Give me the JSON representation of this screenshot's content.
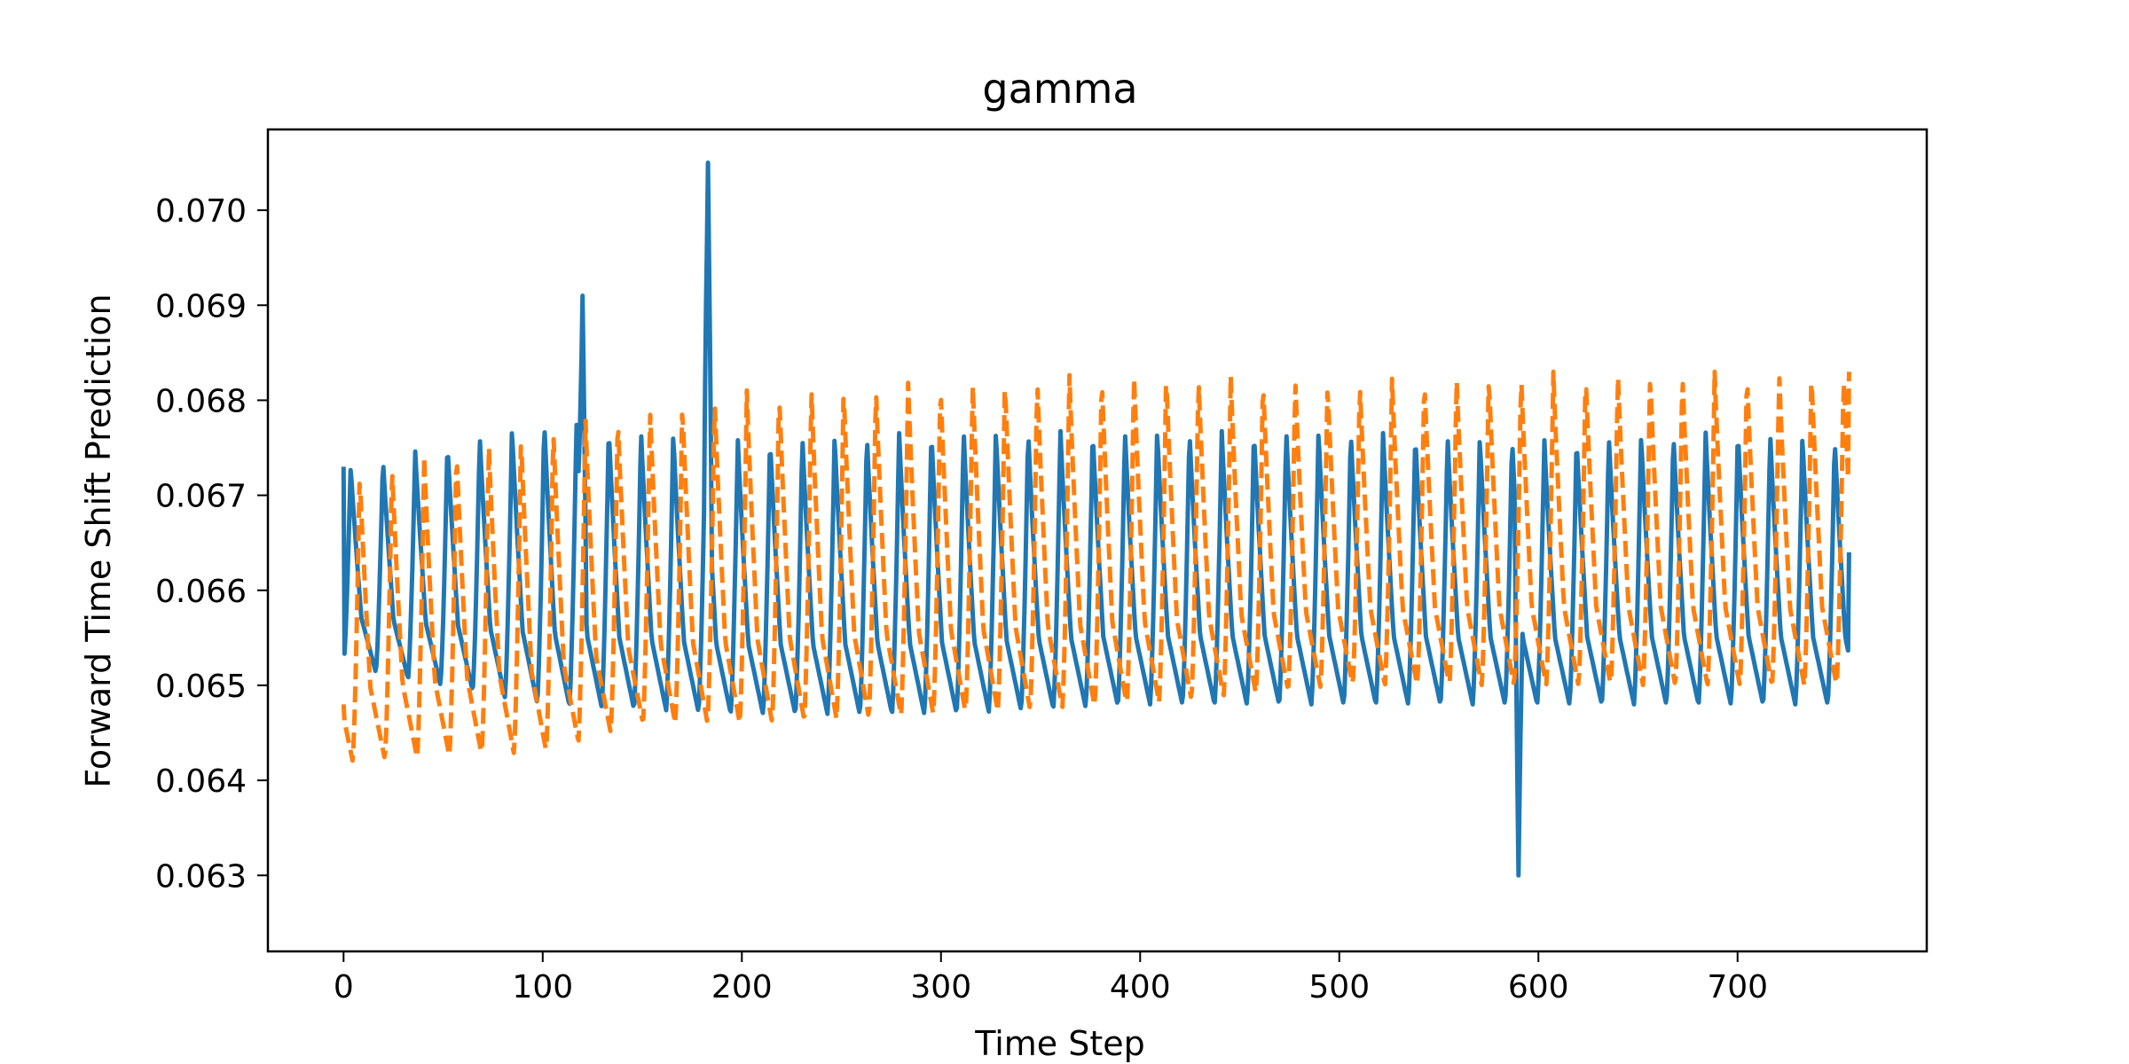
{
  "chart_data": {
    "type": "line",
    "title": "gamma",
    "xlabel": "Time Step",
    "ylabel": "Forward Time Shift Prediction",
    "xlim": [
      -38,
      795
    ],
    "ylim": [
      0.0626,
      0.0788
    ],
    "xticks": [
      0,
      100,
      200,
      300,
      400,
      500,
      600,
      700
    ],
    "yticks": [
      0.063,
      0.064,
      0.065,
      0.066,
      0.067,
      0.068,
      0.069,
      0.07
    ],
    "ytick_labels": [
      "0.063",
      "0.064",
      "0.065",
      "0.066",
      "0.067",
      "0.068",
      "0.069",
      "0.070"
    ],
    "grid": false,
    "legend": "none",
    "x_range": [
      0,
      756
    ],
    "period": 16.2,
    "series": [
      {
        "style": "solid",
        "color": "#1f77b4",
        "start_value": 0.0673,
        "end_value": 0.0664,
        "peak_trend": [
          [
            0,
            0.0673
          ],
          [
            100,
            0.0678
          ],
          [
            200,
            0.0676
          ],
          [
            300,
            0.0677
          ],
          [
            400,
            0.0677
          ],
          [
            500,
            0.0677
          ],
          [
            600,
            0.0676
          ],
          [
            700,
            0.0677
          ],
          [
            756,
            0.0676
          ]
        ],
        "trough_trend": [
          [
            0,
            0.0652
          ],
          [
            100,
            0.0648
          ],
          [
            200,
            0.0647
          ],
          [
            300,
            0.0647
          ],
          [
            400,
            0.0648
          ],
          [
            500,
            0.0648
          ],
          [
            600,
            0.0648
          ],
          [
            700,
            0.0648
          ],
          [
            756,
            0.0648
          ]
        ],
        "spikes": [
          [
            120,
            0.0691
          ],
          [
            183,
            0.0705
          ],
          [
            590,
            0.063
          ]
        ]
      },
      {
        "style": "dashed",
        "color": "#ff7f0e",
        "start_value": 0.0648,
        "end_value": 0.0683,
        "peak_trend": [
          [
            0,
            0.0672
          ],
          [
            100,
            0.0677
          ],
          [
            200,
            0.0681
          ],
          [
            300,
            0.0682
          ],
          [
            400,
            0.0683
          ],
          [
            500,
            0.0682
          ],
          [
            600,
            0.0683
          ],
          [
            700,
            0.0683
          ],
          [
            756,
            0.0683
          ]
        ],
        "trough_trend": [
          [
            0,
            0.0642
          ],
          [
            100,
            0.0643
          ],
          [
            150,
            0.0646
          ],
          [
            200,
            0.0646
          ],
          [
            300,
            0.0647
          ],
          [
            400,
            0.0648
          ],
          [
            500,
            0.065
          ],
          [
            600,
            0.065
          ],
          [
            700,
            0.065
          ],
          [
            756,
            0.065
          ]
        ]
      }
    ]
  }
}
